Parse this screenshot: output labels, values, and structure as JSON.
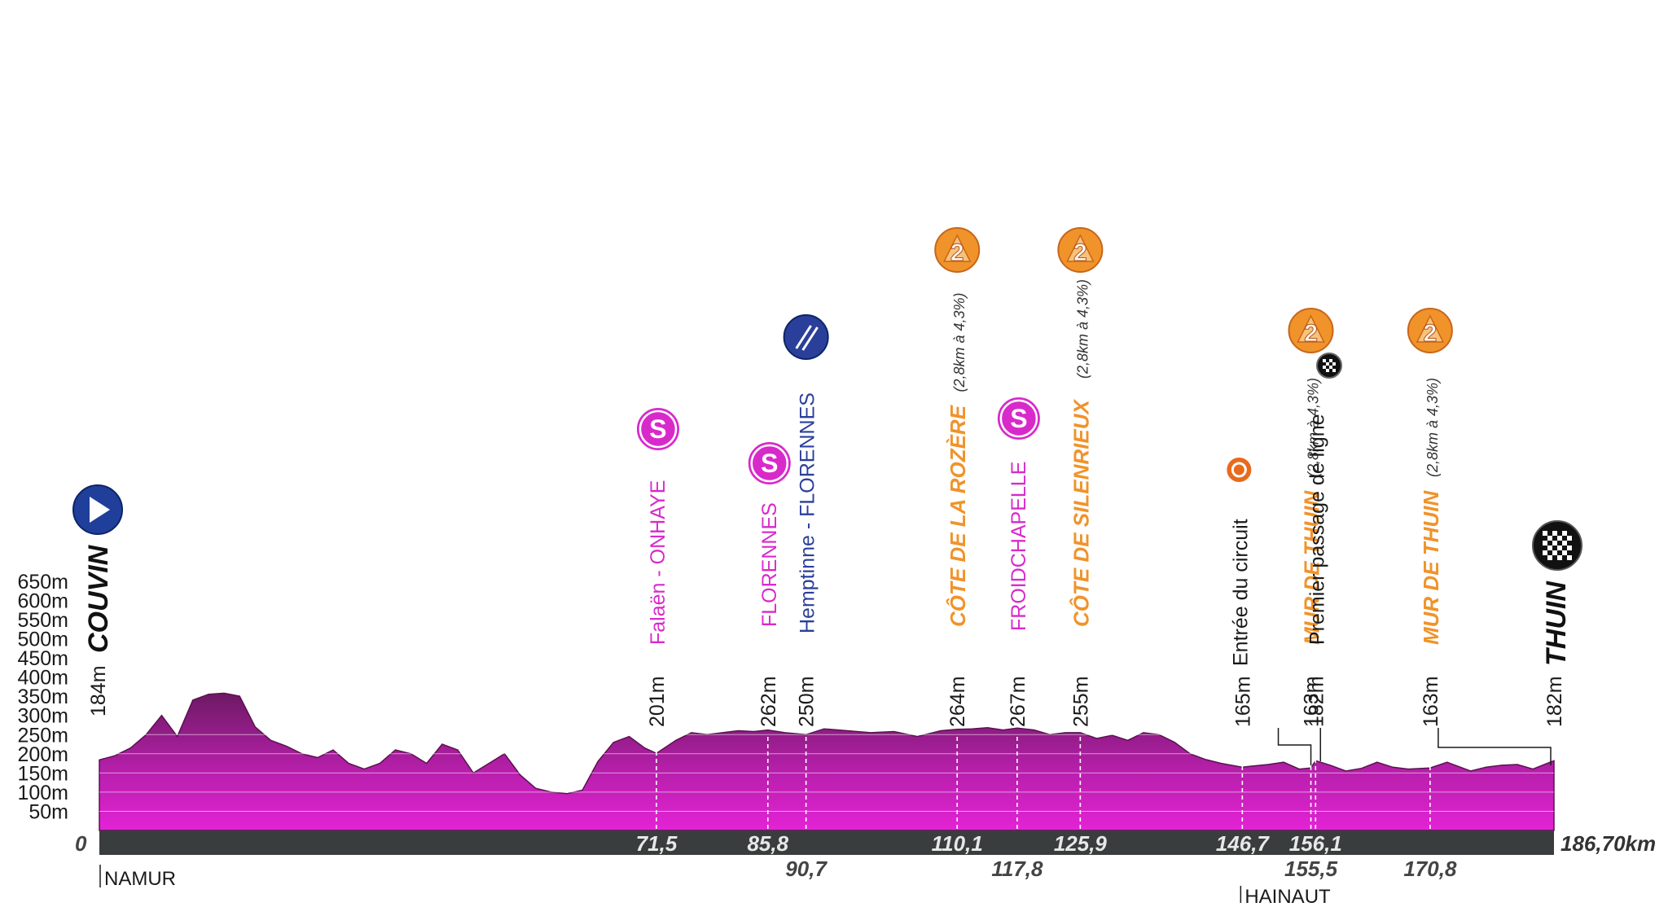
{
  "colors": {
    "profile_dark": "#6d1a63",
    "profile_bright": "#e423d6",
    "sprint": "#d82acb",
    "feed": "#2a3f9a",
    "climb": "#f0932a",
    "text": "#1a1a1a",
    "base_bar": "#3a3d3d"
  },
  "chart_data": {
    "type": "area",
    "xlabel": "",
    "ylabel": "",
    "xlim": [
      0,
      186.7
    ],
    "ylim": [
      0,
      650
    ],
    "y_ticks": [
      "50m",
      "100m",
      "150m",
      "200m",
      "250m",
      "300m",
      "350m",
      "400m",
      "450m",
      "500m",
      "550m",
      "600m",
      "650m"
    ],
    "y_tick_values": [
      50,
      100,
      150,
      200,
      250,
      300,
      350,
      400,
      450,
      500,
      550,
      600,
      650
    ],
    "km_start_label": "0",
    "km_end_label": "186,70km",
    "series": [
      {
        "x": [
          0,
          2,
          4,
          6,
          8,
          10,
          12,
          14,
          16,
          18,
          20,
          22,
          24,
          26,
          28,
          30,
          32,
          34,
          36,
          38,
          40,
          42,
          44,
          46,
          48,
          50,
          52,
          54,
          56,
          58,
          60,
          62,
          64,
          66,
          68,
          70,
          71.5,
          74,
          76,
          78,
          80,
          82,
          84,
          85.8,
          88,
          90.7,
          93,
          96,
          99,
          102,
          105,
          108,
          110.1,
          112,
          114,
          116,
          117.8,
          120,
          122,
          124,
          125.9,
          128,
          130,
          132,
          134,
          136,
          138,
          140,
          142,
          144,
          146.7,
          148,
          150,
          152,
          154,
          155.5,
          156.1,
          158,
          160,
          162,
          164,
          166,
          168,
          170.8,
          173,
          176,
          178,
          180,
          182,
          184,
          186.7
        ],
        "y": [
          184,
          195,
          215,
          250,
          300,
          245,
          340,
          355,
          358,
          350,
          270,
          235,
          220,
          200,
          190,
          210,
          175,
          160,
          175,
          210,
          200,
          175,
          225,
          210,
          150,
          175,
          200,
          145,
          110,
          100,
          96,
          105,
          180,
          230,
          245,
          215,
          201,
          235,
          255,
          250,
          255,
          260,
          258,
          262,
          255,
          250,
          265,
          260,
          255,
          258,
          245,
          260,
          264,
          265,
          268,
          262,
          267,
          262,
          250,
          255,
          255,
          240,
          248,
          235,
          255,
          250,
          230,
          200,
          185,
          175,
          165,
          168,
          172,
          178,
          160,
          163,
          182,
          170,
          155,
          162,
          178,
          165,
          160,
          163,
          178,
          155,
          165,
          170,
          172,
          160,
          182
        ]
      }
    ],
    "km_markers": [
      {
        "km": 71.5,
        "label": "71,5",
        "alt": "201m",
        "row": "top"
      },
      {
        "km": 85.8,
        "label": "85,8",
        "alt": "262m",
        "row": "top"
      },
      {
        "km": 90.7,
        "label": "90,7",
        "alt": "250m",
        "row": "bottom"
      },
      {
        "km": 110.1,
        "label": "110,1",
        "alt": "264m",
        "row": "top"
      },
      {
        "km": 117.8,
        "label": "117,8",
        "alt": "267m",
        "row": "bottom"
      },
      {
        "km": 125.9,
        "label": "125,9",
        "alt": "255m",
        "row": "top"
      },
      {
        "km": 146.7,
        "label": "146,7",
        "alt": "165m",
        "row": "top"
      },
      {
        "km": 155.5,
        "label": "155,5",
        "alt": "163m",
        "row": "bottom"
      },
      {
        "km": 156.1,
        "label": "156,1",
        "alt": "182m",
        "row": "top"
      },
      {
        "km": 170.8,
        "label": "170,8",
        "alt": "163m",
        "row": "bottom"
      },
      {
        "km": 186.7,
        "label": "",
        "alt": "182m",
        "row": "none"
      }
    ],
    "points": [
      {
        "km": 0,
        "icon": "start-icon",
        "name": "COUVIN",
        "alt": "184m",
        "style": "town"
      },
      {
        "km": 71.5,
        "icon": "sprint-icon",
        "icon_text": "S",
        "name": "Falaën - ONHAYE",
        "style": "sprint"
      },
      {
        "km": 85.8,
        "icon": "sprint-icon",
        "icon_text": "S",
        "name": "FLORENNES",
        "style": "sprint"
      },
      {
        "km": 90.7,
        "icon": "feed-zone-icon",
        "name": "Hemptinne - FLORENNES",
        "style": "feed"
      },
      {
        "km": 110.1,
        "icon": "climb-cat2-icon",
        "icon_text": "2",
        "name": "CÔTE DE LA ROZÈRE",
        "detail": "(2,8km à 4,3%)",
        "style": "climb"
      },
      {
        "km": 117.8,
        "icon": "sprint-icon",
        "icon_text": "S",
        "name": "FROIDCHAPELLE",
        "style": "sprint"
      },
      {
        "km": 125.9,
        "icon": "climb-cat2-icon",
        "icon_text": "2",
        "name": "CÔTE DE SILENRIEUX",
        "detail": "(2,8km à 4,3%)",
        "style": "climb"
      },
      {
        "km": 146.7,
        "icon": "circuit-icon",
        "name": "Entrée du circuit",
        "style": "info"
      },
      {
        "km": 155.5,
        "icon": "climb-cat2-icon",
        "icon_text": "2",
        "name": "MUR DE THUIN",
        "detail": "(2,8km à 4,3%)",
        "style": "climb"
      },
      {
        "km": 156.1,
        "icon": "checkered-flag-icon",
        "name": "Premier passage de ligne",
        "style": "info"
      },
      {
        "km": 170.8,
        "icon": "climb-cat2-icon",
        "icon_text": "2",
        "name": "MUR DE THUIN",
        "detail": "(2,8km à 4,3%)",
        "style": "climb"
      },
      {
        "km": 186.7,
        "icon": "finish-icon",
        "name": "THUIN",
        "style": "town"
      }
    ],
    "regions": [
      {
        "km": 0,
        "name": "NAMUR"
      },
      {
        "km": 146.7,
        "name": "HAINAUT"
      }
    ]
  }
}
